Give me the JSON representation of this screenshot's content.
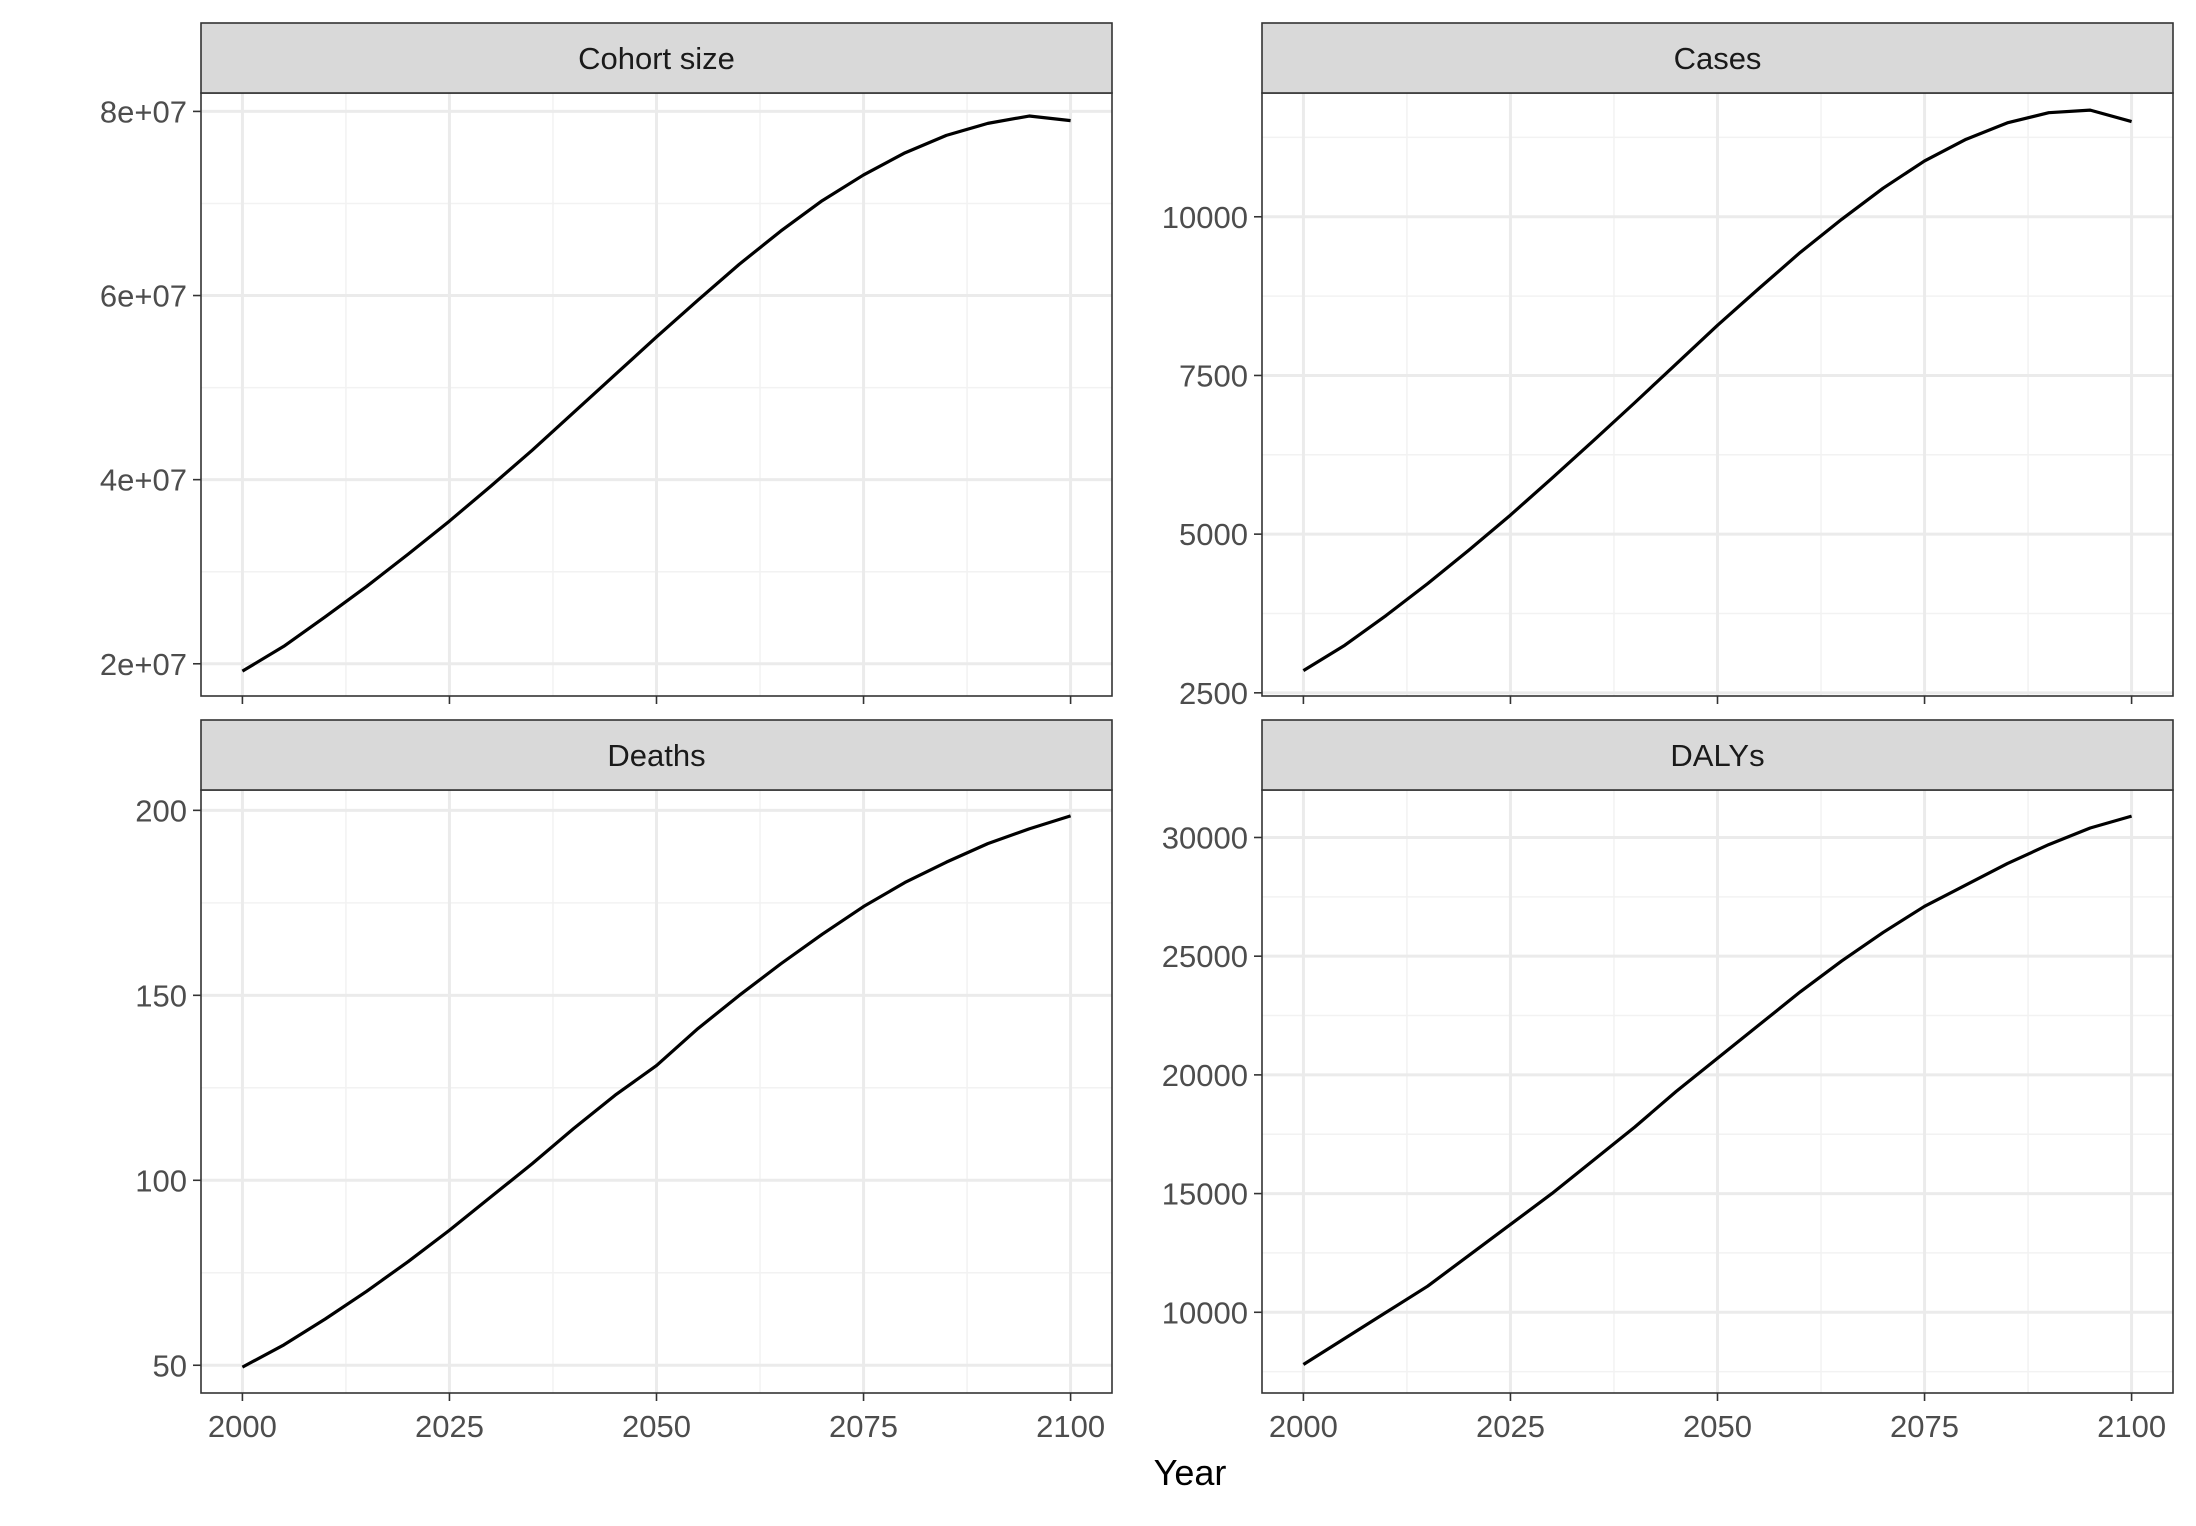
{
  "figure": {
    "xlabel": "Year"
  },
  "chart_data": [
    {
      "type": "line",
      "title": "Cohort size",
      "xlabel": "",
      "ylabel": "",
      "xlim": [
        1995,
        2105
      ],
      "ylim": [
        16500000,
        82000000
      ],
      "x_ticks": [
        2000,
        2025,
        2050,
        2075,
        2100
      ],
      "x_tick_labels": [
        "2000",
        "2025",
        "2050",
        "2075",
        "2100"
      ],
      "x_minor_ticks": [
        2012.5,
        2037.5,
        2062.5,
        2087.5
      ],
      "y_ticks": [
        20000000,
        40000000,
        60000000,
        80000000
      ],
      "y_tick_labels": [
        "2e+07",
        "4e+07",
        "6e+07",
        "8e+07"
      ],
      "y_minor_ticks": [
        30000000,
        50000000,
        70000000
      ],
      "grid": true,
      "x_tick_labels_visible": false,
      "series": [
        {
          "color": "#000000",
          "x": [
            2000,
            2005,
            2010,
            2015,
            2020,
            2025,
            2030,
            2035,
            2040,
            2045,
            2050,
            2055,
            2060,
            2065,
            2070,
            2075,
            2080,
            2085,
            2090,
            2095,
            2100
          ],
          "values": [
            19200000,
            21900000,
            25100000,
            28400000,
            31900000,
            35500000,
            39300000,
            43200000,
            47300000,
            51400000,
            55500000,
            59500000,
            63400000,
            67000000,
            70300000,
            73100000,
            75500000,
            77400000,
            78700000,
            79500000,
            79000000
          ]
        }
      ]
    },
    {
      "type": "line",
      "title": "Cases",
      "xlabel": "",
      "ylabel": "",
      "xlim": [
        1995,
        2105
      ],
      "ylim": [
        2450,
        11950
      ],
      "x_ticks": [
        2000,
        2025,
        2050,
        2075,
        2100
      ],
      "x_tick_labels": [
        "2000",
        "2025",
        "2050",
        "2075",
        "2100"
      ],
      "x_minor_ticks": [
        2012.5,
        2037.5,
        2062.5,
        2087.5
      ],
      "y_ticks": [
        2500,
        5000,
        7500,
        10000
      ],
      "y_tick_labels": [
        "2500",
        "5000",
        "7500",
        "10000"
      ],
      "y_minor_ticks": [
        3750,
        6250,
        8750,
        11250
      ],
      "grid": true,
      "x_tick_labels_visible": false,
      "series": [
        {
          "color": "#000000",
          "x": [
            2000,
            2005,
            2010,
            2015,
            2020,
            2025,
            2030,
            2035,
            2040,
            2045,
            2050,
            2055,
            2060,
            2065,
            2070,
            2075,
            2080,
            2085,
            2090,
            2095,
            2100
          ],
          "values": [
            2850,
            3250,
            3720,
            4220,
            4750,
            5300,
            5880,
            6470,
            7070,
            7680,
            8290,
            8870,
            9440,
            9960,
            10450,
            10880,
            11220,
            11480,
            11640,
            11680,
            11500
          ]
        }
      ]
    },
    {
      "type": "line",
      "title": "Deaths",
      "xlabel": "",
      "ylabel": "",
      "xlim": [
        1995,
        2105
      ],
      "ylim": [
        42500,
        205500
      ],
      "x_ticks": [
        2000,
        2025,
        2050,
        2075,
        2100
      ],
      "x_tick_labels": [
        "2000",
        "2025",
        "2050",
        "2075",
        "2100"
      ],
      "x_minor_ticks": [
        2012.5,
        2037.5,
        2062.5,
        2087.5
      ],
      "y_ticks": [
        50,
        100,
        150,
        200
      ],
      "y_tick_labels": [
        "50",
        "100",
        "150",
        "200"
      ],
      "y_minor_ticks": [
        75,
        125,
        175
      ],
      "grid": true,
      "x_tick_labels_visible": true,
      "series": [
        {
          "color": "#000000",
          "x": [
            2000,
            2005,
            2010,
            2015,
            2020,
            2025,
            2030,
            2035,
            2040,
            2045,
            2050,
            2055,
            2060,
            2065,
            2070,
            2075,
            2080,
            2085,
            2090,
            2095,
            2100
          ],
          "values": [
            49.5,
            55.5,
            62.5,
            70,
            78,
            86.5,
            95.5,
            104.5,
            114,
            123,
            131,
            141,
            150,
            158.5,
            166.5,
            174,
            180.5,
            186,
            191,
            195,
            198.5
          ]
        }
      ]
    },
    {
      "type": "line",
      "title": "DALYs",
      "xlabel": "",
      "ylabel": "",
      "xlim": [
        1995,
        2105
      ],
      "ylim": [
        6600,
        32000
      ],
      "x_ticks": [
        2000,
        2025,
        2050,
        2075,
        2100
      ],
      "x_tick_labels": [
        "2000",
        "2025",
        "2050",
        "2075",
        "2100"
      ],
      "x_minor_ticks": [
        2012.5,
        2037.5,
        2062.5,
        2087.5
      ],
      "y_ticks": [
        10000,
        15000,
        20000,
        25000,
        30000
      ],
      "y_tick_labels": [
        "10000",
        "15000",
        "20000",
        "25000",
        "30000"
      ],
      "y_minor_ticks": [
        7500,
        12500,
        17500,
        22500,
        27500
      ],
      "grid": true,
      "x_tick_labels_visible": true,
      "series": [
        {
          "color": "#000000",
          "x": [
            2000,
            2005,
            2010,
            2015,
            2020,
            2025,
            2030,
            2035,
            2040,
            2045,
            2050,
            2055,
            2060,
            2065,
            2070,
            2075,
            2080,
            2085,
            2090,
            2095,
            2100
          ],
          "values": [
            7800,
            8900,
            10000,
            11100,
            12400,
            13700,
            15000,
            16400,
            17800,
            19300,
            20700,
            22100,
            23500,
            24800,
            26000,
            27100,
            28000,
            28900,
            29700,
            30400,
            30900
          ]
        }
      ]
    }
  ]
}
